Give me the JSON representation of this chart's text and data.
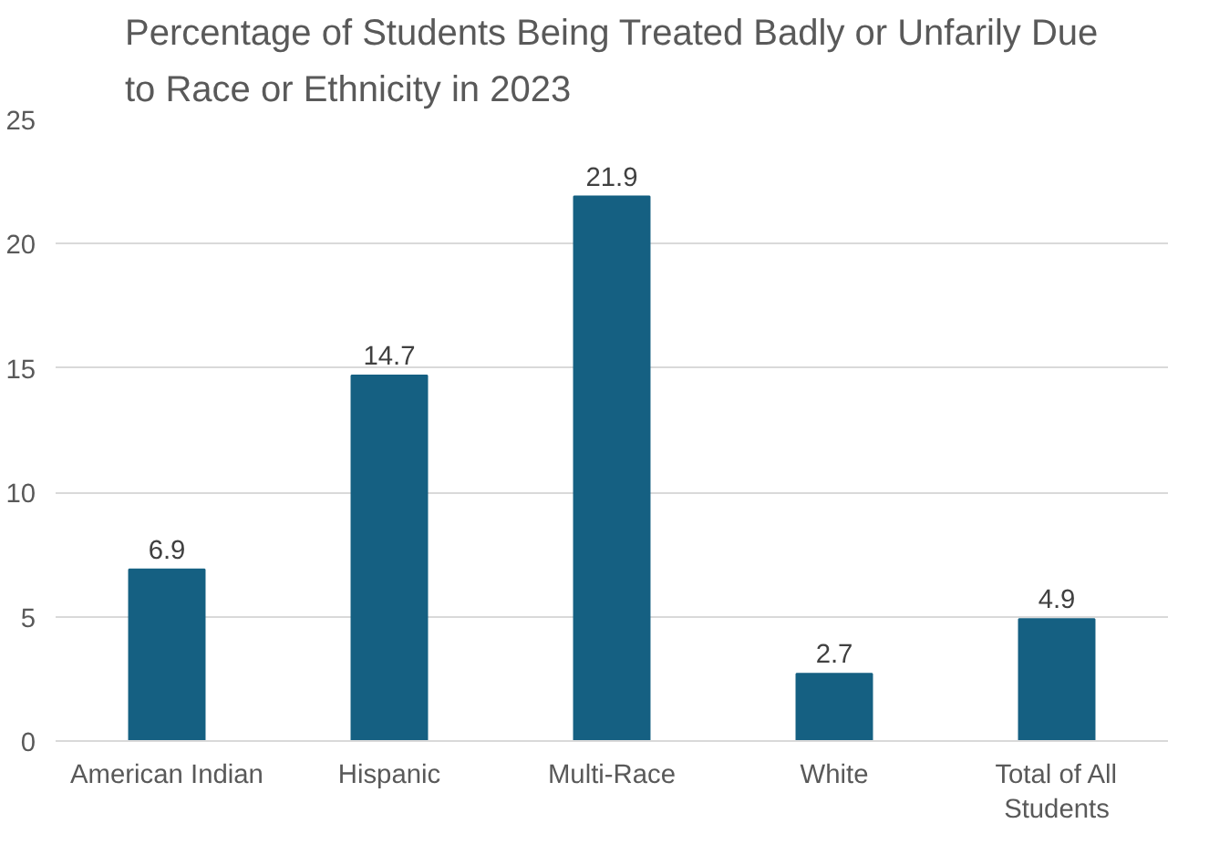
{
  "chart_data": {
    "type": "bar",
    "title": "Percentage of Students Being Treated Badly or Unfarily Due to Race or Ethnicity in 2023",
    "categories": [
      "American Indian",
      "Hispanic",
      "Multi-Race",
      "White",
      "Total of All Students"
    ],
    "values": [
      6.9,
      14.7,
      21.9,
      2.7,
      4.9
    ],
    "color": "#156082",
    "ylim": [
      0,
      25
    ],
    "yticks": [
      0,
      5,
      10,
      15,
      20,
      25
    ],
    "grid": "y",
    "data_labels": true
  }
}
